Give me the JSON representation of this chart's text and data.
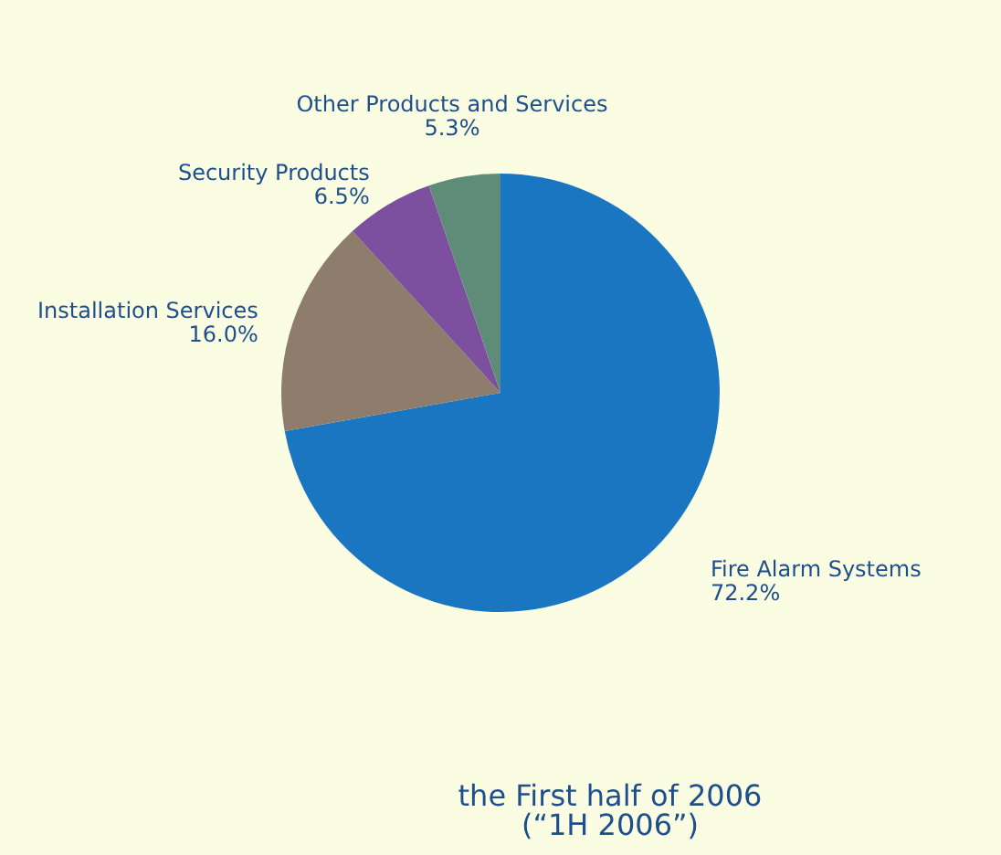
{
  "chart_data": {
    "type": "pie",
    "title": "the First half of 2006",
    "subtitle": "(“1H 2006”)",
    "categories": [
      "Fire Alarm Systems",
      "Installation Services",
      "Security Products",
      "Other Products and Services"
    ],
    "values": [
      72.2,
      16.0,
      6.5,
      5.3
    ],
    "value_labels": [
      "72.2%",
      "16.0%",
      "6.5%",
      "5.3%"
    ],
    "colors": [
      "#1b76c2",
      "#8e7c6c",
      "#7c509f",
      "#5e8c78"
    ],
    "legend": false
  }
}
